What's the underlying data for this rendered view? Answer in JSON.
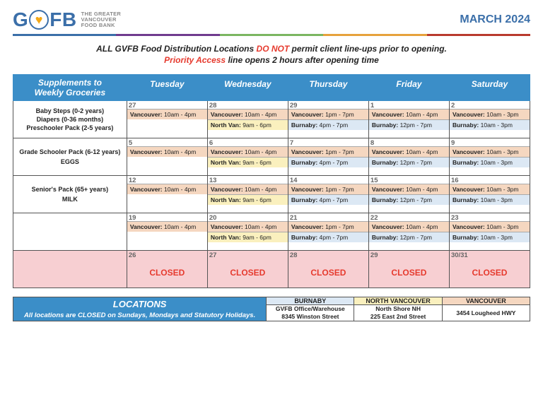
{
  "org": {
    "logo_prefix": "G",
    "logo_suffix": "FB",
    "subtitle_l1": "THE GREATER",
    "subtitle_l2": "VANCOUVER",
    "subtitle_l3": "FOOD BANK"
  },
  "title": "MARCH 2024",
  "color_bar": [
    "#3b6fa9",
    "#6f3b8e",
    "#7bb661",
    "#e6a23c",
    "#b93a2e"
  ],
  "notice": {
    "l1a": "ALL GVFB Food Distribution Locations ",
    "l1b": "DO NOT",
    "l1c": " permit client line-ups prior to opening.",
    "l2a": "Priority Access",
    "l2b": " line opens 2 hours after opening time"
  },
  "table_header": {
    "c0_l1": "Supplements to",
    "c0_l2": "Weekly Groceries",
    "days": [
      "Tuesday",
      "Wednesday",
      "Thursday",
      "Friday",
      "Saturday"
    ]
  },
  "supplements_col": [
    [
      "Baby Steps (0-2 years)",
      "Diapers (0-36 months)",
      "Preschooler Pack (2-5 years)"
    ],
    [
      "Grade Schooler Pack (6-12 years)",
      "EGGS"
    ],
    [
      "Senior's Pack (65+ years)",
      "MILK"
    ],
    [],
    []
  ],
  "locations": {
    "van": {
      "label": "Vancouver:",
      "color": "#f5d7c0"
    },
    "nvan": {
      "label": "North Van:",
      "color": "#faf0be"
    },
    "burn": {
      "label": "Burnaby:",
      "color": "#dce8f4"
    }
  },
  "week_slots": {
    "tue": [
      {
        "k": "van",
        "time": "10am - 4pm"
      }
    ],
    "wed": [
      {
        "k": "van",
        "time": "10am - 4pm"
      },
      {
        "k": "nvan",
        "time": "9am - 6pm"
      }
    ],
    "thu": [
      {
        "k": "van",
        "time": "1pm - 7pm"
      },
      {
        "k": "burn",
        "time": "4pm - 7pm"
      }
    ],
    "fri": [
      {
        "k": "van",
        "time": "10am - 4pm"
      },
      {
        "k": "burn",
        "time": "12pm - 7pm"
      }
    ],
    "sat": [
      {
        "k": "van",
        "time": "10am - 3pm"
      },
      {
        "k": "burn",
        "time": "10am - 3pm"
      }
    ]
  },
  "rows": [
    {
      "type": "open",
      "days": [
        "27",
        "28",
        "29",
        "1",
        "2"
      ]
    },
    {
      "type": "open",
      "days": [
        "5",
        "6",
        "7",
        "8",
        "9"
      ]
    },
    {
      "type": "open",
      "days": [
        "12",
        "13",
        "14",
        "15",
        "16"
      ]
    },
    {
      "type": "open",
      "days": [
        "19",
        "20",
        "21",
        "22",
        "23"
      ]
    },
    {
      "type": "closed",
      "days": [
        "26",
        "27",
        "28",
        "29",
        "30/31"
      ]
    }
  ],
  "day_keys": [
    "tue",
    "wed",
    "thu",
    "fri",
    "sat"
  ],
  "closed_label": "CLOSED",
  "locations_footer": {
    "title": "LOCATIONS",
    "sub": "All locations are CLOSED on Sundays, Mondays and Statutory Holidays.",
    "cols": [
      {
        "head": "BURNABY",
        "cls": "loc-head-burn",
        "l1": "GVFB Office/Warehouse",
        "l2": "8345 Winston Street"
      },
      {
        "head": "NORTH VANCOUVER",
        "cls": "loc-head-nvan",
        "l1": "North Shore NH",
        "l2": "225 East 2nd Street"
      },
      {
        "head": "VANCOUVER",
        "cls": "loc-head-van",
        "l1": "3454 Lougheed HWY",
        "l2": ""
      }
    ]
  },
  "col_widths_pct": [
    22,
    15.6,
    15.6,
    15.6,
    15.6,
    15.6
  ]
}
